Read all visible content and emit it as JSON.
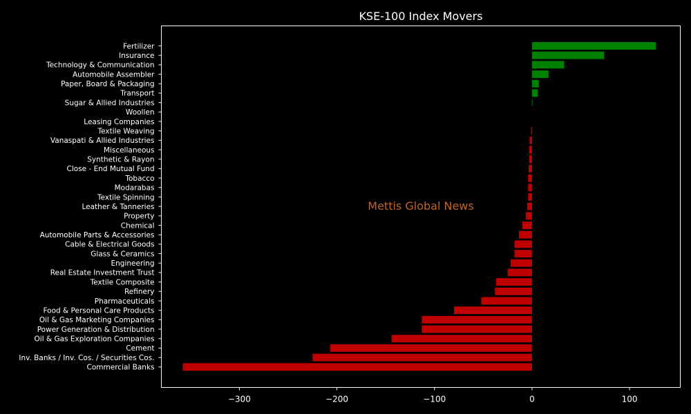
{
  "chart_data": {
    "type": "bar",
    "orientation": "horizontal",
    "title": "KSE-100 Index Movers",
    "xlabel": "",
    "ylabel": "",
    "xlim": [
      -380,
      152
    ],
    "x_ticks": [
      -300,
      -200,
      -100,
      0,
      100
    ],
    "x_tick_labels": [
      "−300",
      "−200",
      "−100",
      "0",
      "100"
    ],
    "grid": false,
    "legend": "none",
    "watermark": "Mettis Global News",
    "colors": {
      "background": "#000000",
      "positive": "#008000",
      "negative": "#c00000",
      "text": "#ffffff",
      "watermark": "#c0652a"
    },
    "categories": [
      "Fertilizer",
      "Insurance",
      "Technology & Communication",
      "Automobile Assembler",
      "Paper, Board & Packaging",
      "Transport",
      "Sugar & Allied Industries",
      "Woollen",
      "Leasing Companies",
      "Textile Weaving",
      "Vanaspati & Allied Industries",
      "Miscellaneous",
      "Synthetic & Rayon",
      "Close - End Mutual Fund",
      "Tobacco",
      "Modarabas",
      "Textile Spinning",
      "Leather & Tanneries",
      "Property",
      "Chemical",
      "Automobile Parts & Accessories",
      "Cable & Electrical Goods",
      "Glass & Ceramics",
      "Engineering",
      "Real Estate Investment Trust",
      "Textile Composite",
      "Refinery",
      "Pharmaceuticals",
      "Food & Personal Care Products",
      "Oil & Gas Marketing Companies",
      "Power Generation & Distribution",
      "Oil & Gas Exploration Companies",
      "Cement",
      "Inv. Banks / Inv. Cos. / Securities Cos.",
      "Commercial Banks"
    ],
    "values": [
      127,
      74,
      33,
      17,
      7,
      6,
      0.5,
      0,
      0,
      -1,
      -2.5,
      -3,
      -3,
      -3.5,
      -4,
      -4,
      -4,
      -5,
      -6.5,
      -10,
      -13.5,
      -18,
      -18,
      -22,
      -25,
      -37,
      -38,
      -52,
      -80,
      -113,
      -113,
      -144,
      -207,
      -225,
      -358
    ]
  }
}
